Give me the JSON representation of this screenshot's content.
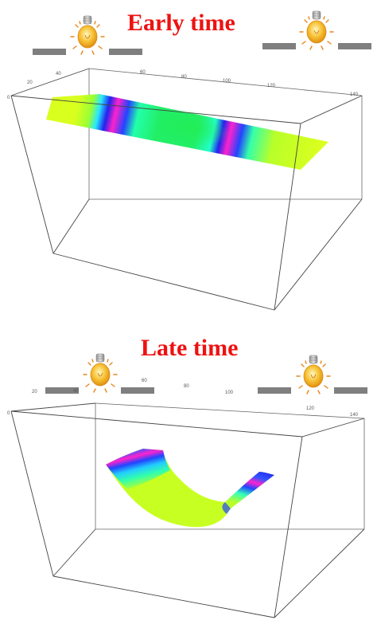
{
  "panels": [
    {
      "title": "Early time",
      "tick_labels": [
        "0",
        "20",
        "40",
        "60",
        "80",
        "100",
        "120",
        "140"
      ]
    },
    {
      "title": "Late time",
      "tick_labels": [
        "0",
        "20",
        "40",
        "60",
        "80",
        "100",
        "120",
        "140"
      ]
    }
  ],
  "icons": [
    "light-bulb-icon",
    "electrode-bar"
  ],
  "colors": {
    "title": "#ee1111",
    "bulb": "#f7c235",
    "electrode": "#7f7f7f",
    "low": "#d9ff1f",
    "mid": "#22ee66",
    "high_blue": "#2222ee",
    "high_magenta": "#ff22cc"
  }
}
